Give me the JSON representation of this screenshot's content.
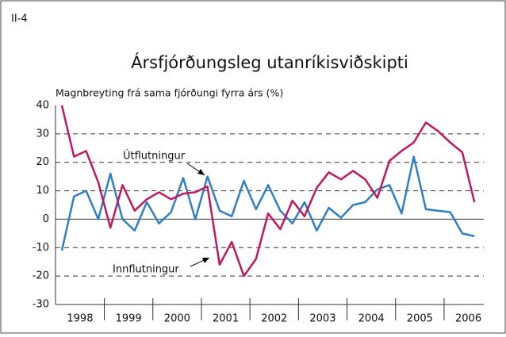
{
  "chart_data": {
    "type": "line",
    "figure_label": "II-4",
    "title": "Ársfjórðungsleg utanríkisviðskipti",
    "y_label": "Magnbreyting frá sama fjórðungi fyrra árs (%)",
    "categories": [
      null,
      "1998",
      null,
      null,
      null,
      "1999",
      null,
      null,
      null,
      "2000",
      null,
      null,
      null,
      "2001",
      null,
      null,
      null,
      "2002",
      null,
      null,
      null,
      "2003",
      null,
      null,
      null,
      "2004",
      null,
      null,
      null,
      "2005",
      null,
      null,
      null,
      "2006",
      null
    ],
    "series": [
      {
        "name": "Útflutningur",
        "color": "#2f7fc1",
        "values": [
          -11,
          8,
          10,
          0,
          16,
          0,
          -4,
          6,
          -1.5,
          2.5,
          14.5,
          0,
          15,
          3,
          1,
          13.5,
          3.5,
          12,
          3,
          -1.5,
          6,
          -4,
          4,
          0.5,
          5,
          6,
          10.5,
          12,
          2,
          22,
          3.5,
          3,
          2.5,
          -5,
          -6
        ]
      },
      {
        "name": "Innflutningur",
        "color": "#c0185a",
        "values": [
          40,
          22,
          24,
          13,
          -3,
          12,
          3,
          7,
          9.5,
          7,
          9,
          9.5,
          11.5,
          -16,
          -8,
          -20,
          -14,
          2,
          -3.5,
          6.5,
          1,
          11,
          16.5,
          14,
          17,
          14,
          7.5,
          20.5,
          24,
          27,
          34,
          31,
          27,
          23.5,
          6
        ]
      }
    ],
    "ylim": [
      -30,
      40
    ],
    "yticks": [
      -30,
      -20,
      -10,
      0,
      10,
      20,
      30,
      40
    ],
    "grid": true
  }
}
